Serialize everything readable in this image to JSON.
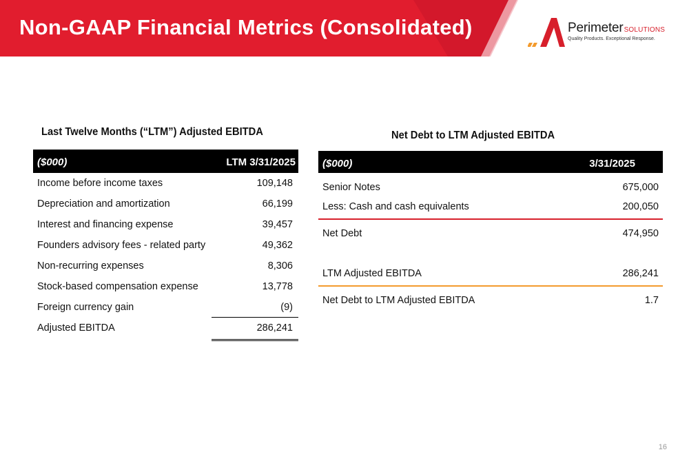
{
  "header": {
    "title": "Non-GAAP Financial Metrics (Consolidated)",
    "colors": {
      "band_red": "#e11d2e",
      "band_dark": "#b5121f",
      "accent_orange": "#f39a2c"
    }
  },
  "logo": {
    "icon": "perimeter-logo-icon",
    "name": "Perimeter",
    "suffix": "SOLUTIONS",
    "tagline": "Quality Products. Exceptional Response."
  },
  "left": {
    "title": "Last Twelve Months (“LTM”) Adjusted EBITDA",
    "header_left": "($000)",
    "header_right": "LTM 3/31/2025",
    "rows": [
      {
        "label": "Income before income taxes",
        "value": "109,148"
      },
      {
        "label": "Depreciation and amortization",
        "value": "66,199"
      },
      {
        "label": "Interest and financing expense",
        "value": "39,457"
      },
      {
        "label": "Founders advisory fees - related party",
        "value": "49,362"
      },
      {
        "label": "Non-recurring expenses",
        "value": "8,306"
      },
      {
        "label": "Stock-based compensation expense",
        "value": "13,778"
      },
      {
        "label": "Foreign currency gain",
        "value": "(9)"
      },
      {
        "label": "Adjusted EBITDA",
        "value": "286,241"
      }
    ]
  },
  "right": {
    "title": "Net Debt to LTM Adjusted EBITDA",
    "header_left": "($000)",
    "header_right": "3/31/2025",
    "rows": [
      {
        "label": "Senior Notes",
        "value": "675,000"
      },
      {
        "label": "Less: Cash and cash equivalents",
        "value": "200,050"
      },
      {
        "label": "Net Debt",
        "value": "474,950"
      },
      {
        "label": "LTM Adjusted EBITDA",
        "value": "286,241"
      },
      {
        "label": "Net Debt to LTM Adjusted EBITDA",
        "value": "1.7"
      }
    ]
  },
  "page_number": "16"
}
